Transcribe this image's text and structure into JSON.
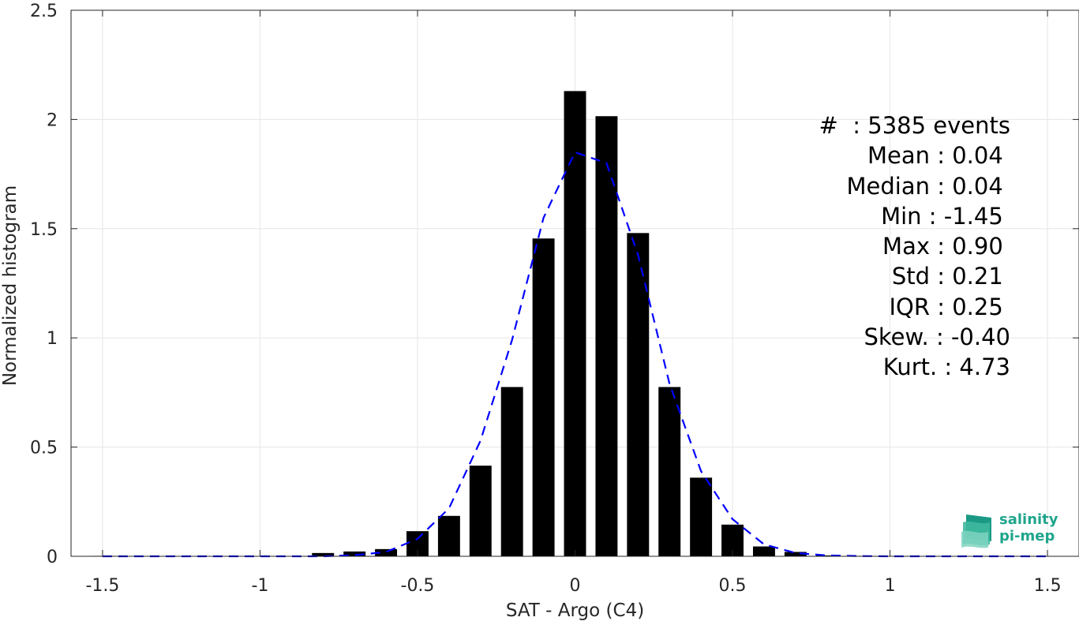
{
  "chart_data": {
    "type": "bar",
    "xlabel": "SAT - Argo (C4)",
    "ylabel": "Normalized histogram",
    "xlim": [
      -1.6,
      1.6
    ],
    "ylim": [
      0,
      2.5
    ],
    "xticks": [
      "-1.5",
      "-1",
      "-0.5",
      "0",
      "0.5",
      "1",
      "1.5"
    ],
    "xtick_values": [
      -1.5,
      -1,
      -0.5,
      0,
      0.5,
      1,
      1.5
    ],
    "yticks": [
      "0",
      "0.5",
      "1",
      "1.5",
      "2",
      "2.5"
    ],
    "ytick_values": [
      0,
      0.5,
      1,
      1.5,
      2,
      2.5
    ],
    "grid": true,
    "bar_color": "#000000",
    "bars": {
      "bin_width": 0.1,
      "x": [
        -1.5,
        -1.4,
        -1.3,
        -1.2,
        -1.1,
        -1.0,
        -0.9,
        -0.8,
        -0.7,
        -0.6,
        -0.5,
        -0.4,
        -0.3,
        -0.2,
        -0.1,
        0.0,
        0.1,
        0.2,
        0.3,
        0.4,
        0.5,
        0.6,
        0.7,
        0.8,
        0.9,
        1.0,
        1.1,
        1.2,
        1.3,
        1.4,
        1.5
      ],
      "values": [
        0.002,
        0,
        0,
        0,
        0,
        0,
        0,
        0.015,
        0.022,
        0.033,
        0.115,
        0.185,
        0.415,
        0.775,
        1.455,
        2.13,
        2.015,
        1.48,
        0.775,
        0.36,
        0.145,
        0.045,
        0.02,
        0.004,
        0.002,
        0,
        0,
        0,
        0,
        0,
        0
      ]
    },
    "fit": {
      "style": "dashed",
      "color": "#0000ff",
      "x": [
        -1.5,
        -1.4,
        -1.3,
        -1.2,
        -1.1,
        -1.0,
        -0.9,
        -0.8,
        -0.7,
        -0.6,
        -0.5,
        -0.4,
        -0.3,
        -0.2,
        -0.1,
        0.0,
        0.1,
        0.2,
        0.3,
        0.4,
        0.5,
        0.6,
        0.7,
        0.8,
        0.9,
        1.0,
        1.1,
        1.2,
        1.3,
        1.4,
        1.5
      ],
      "values": [
        0,
        0,
        0,
        0,
        0,
        0,
        0,
        0,
        0.005,
        0.02,
        0.08,
        0.22,
        0.53,
        0.99,
        1.55,
        1.85,
        1.8,
        1.38,
        0.79,
        0.39,
        0.17,
        0.055,
        0.015,
        0.004,
        0.001,
        0,
        0,
        0,
        0,
        0,
        0
      ]
    }
  },
  "stats": [
    "#  : 5385 events",
    "Mean : 0.04 ",
    "Median : 0.04 ",
    "Min : -1.45 ",
    "Max : 0.90 ",
    "Std : 0.21 ",
    "IQR : 0.25 ",
    "Skew. : -0.40",
    "Kurt. : 4.73"
  ],
  "logo": {
    "line1": "salinity",
    "line2": "pi-mep",
    "color": "#1fa58c"
  }
}
